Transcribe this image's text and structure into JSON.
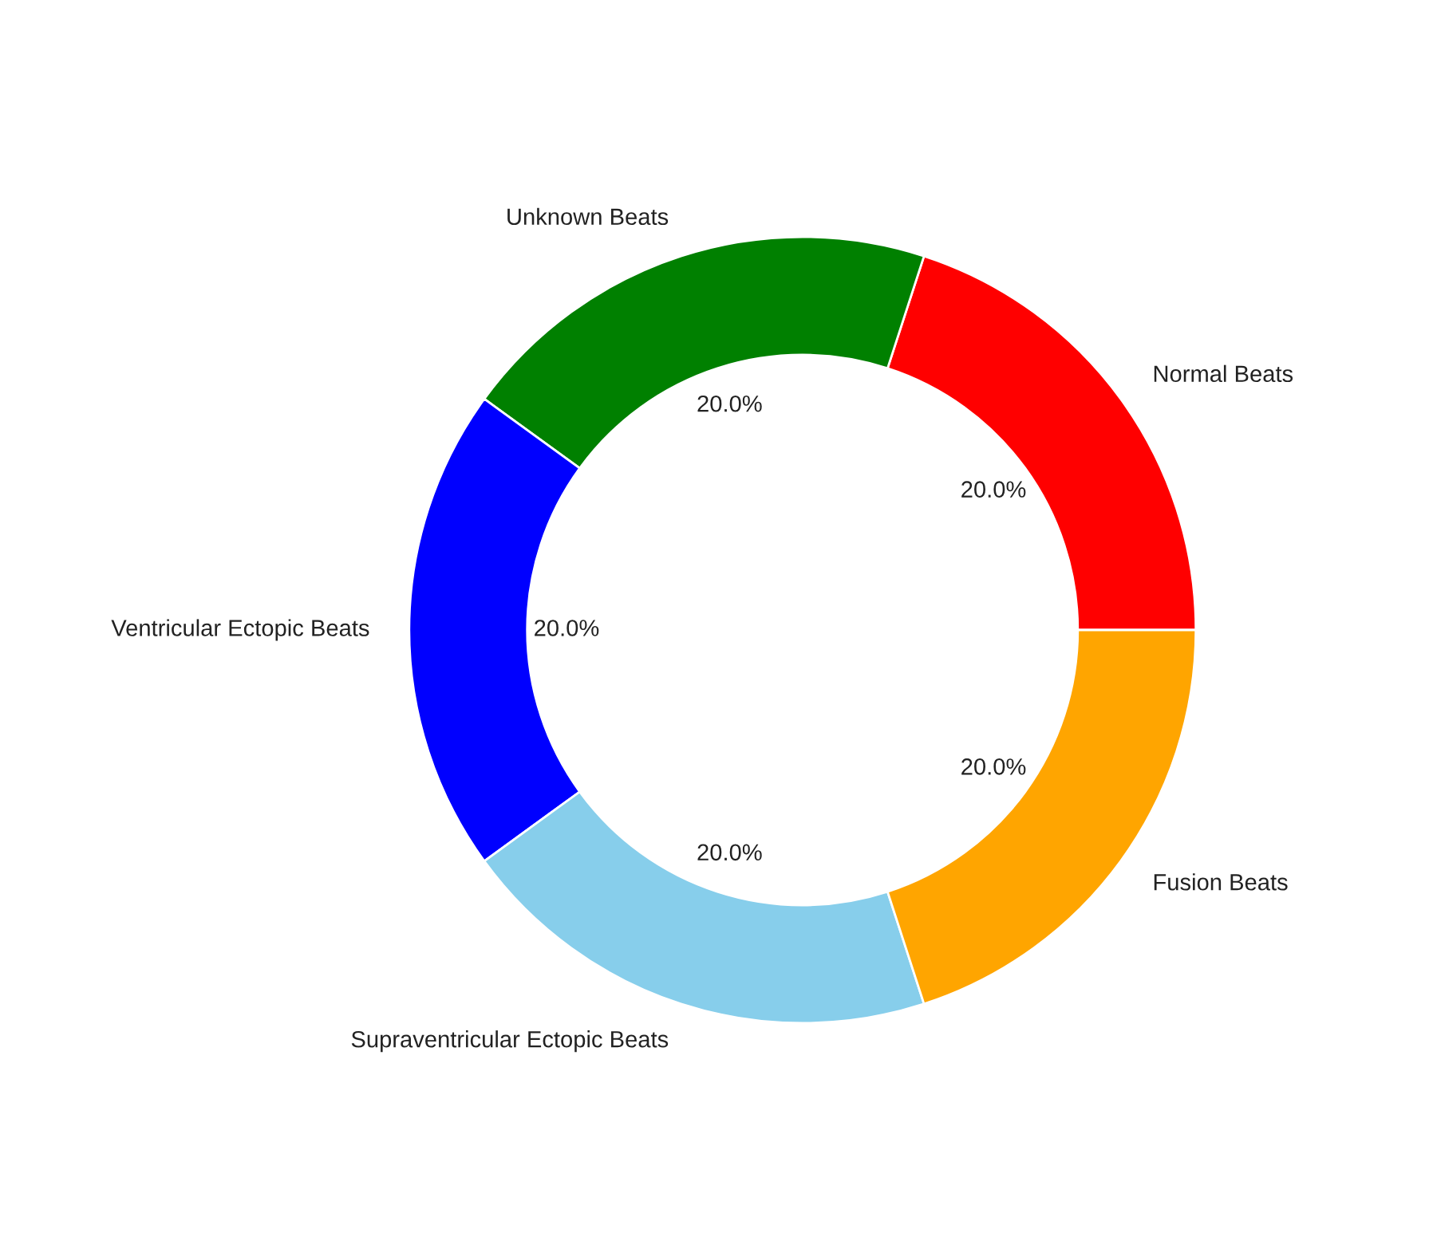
{
  "chart_data": {
    "type": "donut",
    "categories": [
      "Normal Beats",
      "Unknown Beats",
      "Ventricular Ectopic Beats",
      "Supraventricular Ectopic Beats",
      "Fusion Beats"
    ],
    "values": [
      20,
      20,
      20,
      20,
      20
    ],
    "colors": [
      "#ff0000",
      "#008000",
      "#0000ff",
      "#87ceeb",
      "#ffa500"
    ],
    "value_labels": [
      "20.0%",
      "20.0%",
      "20.0%",
      "20.0%",
      "20.0%"
    ]
  }
}
